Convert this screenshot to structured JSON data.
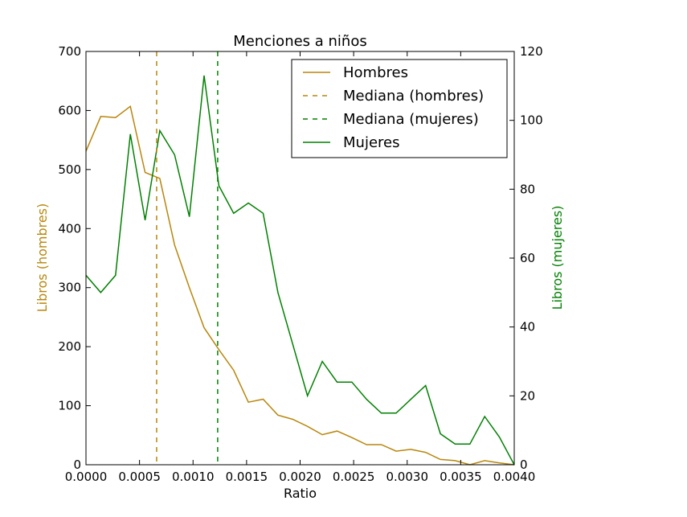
{
  "chart_data": {
    "type": "line",
    "title": "Menciones a niños",
    "xlabel": "Ratio",
    "ylabel_left": "Libros (hombres)",
    "ylabel_right": "Libros (mujeres)",
    "xlim": [
      0,
      0.004
    ],
    "ylim_left": [
      0,
      700
    ],
    "ylim_right": [
      0,
      120
    ],
    "x_ticks": [
      "0.0000",
      "0.0005",
      "0.0010",
      "0.0015",
      "0.0020",
      "0.0025",
      "0.0030",
      "0.0035",
      "0.0040"
    ],
    "y_left_ticks": [
      "0",
      "100",
      "200",
      "300",
      "400",
      "500",
      "600",
      "700"
    ],
    "y_right_ticks": [
      "0",
      "20",
      "40",
      "60",
      "80",
      "100",
      "120"
    ],
    "grid": false,
    "legend_position": "top-right",
    "colors": {
      "hombres": "#b8860b",
      "mujeres": "#008000"
    },
    "series": [
      {
        "name": "Hombres",
        "axis": "left",
        "x": [
          0.0,
          0.000138,
          0.000276,
          0.000414,
          0.000552,
          0.00069,
          0.000828,
          0.000966,
          0.001103,
          0.001241,
          0.001379,
          0.001517,
          0.001655,
          0.001793,
          0.001931,
          0.002069,
          0.002207,
          0.002345,
          0.002483,
          0.002621,
          0.002759,
          0.002897,
          0.003034,
          0.003172,
          0.00331,
          0.003448,
          0.003586,
          0.003724,
          0.003862,
          0.004
        ],
        "values": [
          531,
          590,
          588,
          607,
          495,
          485,
          372,
          300,
          232,
          195,
          160,
          106,
          111,
          84,
          77,
          65,
          51,
          57,
          46,
          34,
          34,
          23,
          26,
          21,
          9,
          7,
          0,
          7,
          3,
          0
        ]
      },
      {
        "name": "Mujeres",
        "axis": "right",
        "x": [
          0.0,
          0.000138,
          0.000276,
          0.000414,
          0.000552,
          0.00069,
          0.000828,
          0.000966,
          0.001103,
          0.001241,
          0.001379,
          0.001517,
          0.001655,
          0.001793,
          0.001931,
          0.002069,
          0.002207,
          0.002345,
          0.002483,
          0.002621,
          0.002759,
          0.002897,
          0.003034,
          0.003172,
          0.00331,
          0.003448,
          0.003586,
          0.003724,
          0.003862,
          0.004
        ],
        "values": [
          55,
          50,
          55,
          96,
          71,
          97,
          90,
          72,
          113,
          81,
          73,
          76,
          73,
          50,
          35,
          20,
          30,
          24,
          24,
          19,
          15,
          15,
          19,
          23,
          9,
          6,
          6,
          14,
          8,
          0
        ]
      }
    ],
    "medians": [
      {
        "name": "Mediana (hombres)",
        "x": 0.00066
      },
      {
        "name": "Mediana (mujeres)",
        "x": 0.00123
      }
    ],
    "legend": [
      "Hombres",
      "Mediana (hombres)",
      "Mediana (mujeres)",
      "Mujeres"
    ]
  }
}
